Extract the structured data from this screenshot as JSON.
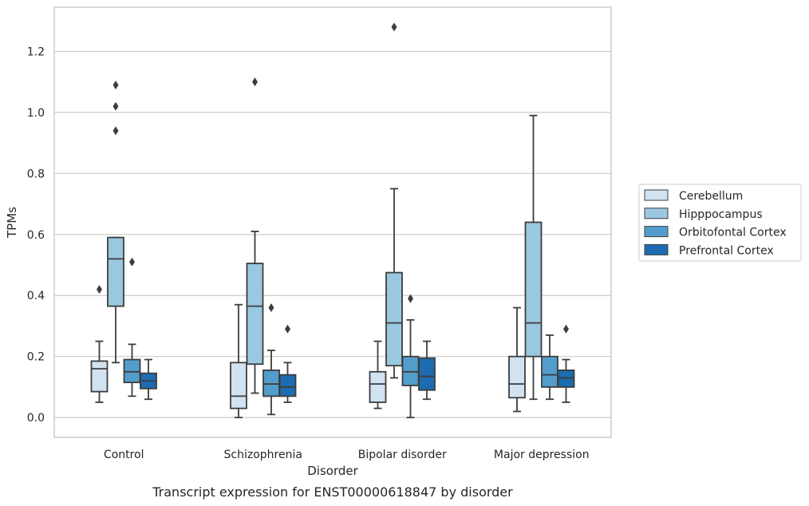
{
  "chart_data": {
    "type": "boxplot",
    "caption": "Transcript expression for ENST00000618847 by disorder",
    "xlabel": "Disorder",
    "ylabel": "TPMs",
    "ylim": [
      -0.065,
      1.345
    ],
    "yticks": [
      0.0,
      0.2,
      0.4,
      0.6,
      0.8,
      1.0,
      1.2
    ],
    "ytick_labels": [
      "0.0",
      "0.2",
      "0.4",
      "0.6",
      "0.8",
      "1.0",
      "1.2"
    ],
    "grid": true,
    "legend_position": "right",
    "categories": [
      "Control",
      "Schizophrenia",
      "Bipolar disorder",
      "Major depression"
    ],
    "series": [
      {
        "name": "Cerebellum",
        "color": "#d1e2f1",
        "boxes": [
          {
            "whislo": 0.05,
            "q1": 0.085,
            "med": 0.16,
            "q3": 0.185,
            "whishi": 0.25,
            "fliers": [
              0.42
            ]
          },
          {
            "whislo": 0.0,
            "q1": 0.03,
            "med": 0.07,
            "q3": 0.18,
            "whishi": 0.37,
            "fliers": []
          },
          {
            "whislo": 0.03,
            "q1": 0.05,
            "med": 0.11,
            "q3": 0.15,
            "whishi": 0.25,
            "fliers": []
          },
          {
            "whislo": 0.02,
            "q1": 0.065,
            "med": 0.11,
            "q3": 0.2,
            "whishi": 0.36,
            "fliers": []
          }
        ]
      },
      {
        "name": "Hipppocampus",
        "color": "#9ac8e0",
        "boxes": [
          {
            "whislo": 0.18,
            "q1": 0.365,
            "med": 0.52,
            "q3": 0.59,
            "whishi": 0.59,
            "fliers": [
              0.94,
              1.02,
              1.09
            ]
          },
          {
            "whislo": 0.08,
            "q1": 0.175,
            "med": 0.365,
            "q3": 0.505,
            "whishi": 0.61,
            "fliers": [
              1.1
            ]
          },
          {
            "whislo": 0.13,
            "q1": 0.17,
            "med": 0.31,
            "q3": 0.475,
            "whishi": 0.75,
            "fliers": [
              1.28
            ]
          },
          {
            "whislo": 0.06,
            "q1": 0.2,
            "med": 0.31,
            "q3": 0.64,
            "whishi": 0.99,
            "fliers": []
          }
        ]
      },
      {
        "name": "Orbitofontal Cortex",
        "color": "#529dcc",
        "boxes": [
          {
            "whislo": 0.07,
            "q1": 0.115,
            "med": 0.15,
            "q3": 0.19,
            "whishi": 0.24,
            "fliers": [
              0.51
            ]
          },
          {
            "whislo": 0.01,
            "q1": 0.07,
            "med": 0.11,
            "q3": 0.155,
            "whishi": 0.22,
            "fliers": [
              0.36
            ]
          },
          {
            "whislo": 0.0,
            "q1": 0.105,
            "med": 0.15,
            "q3": 0.2,
            "whishi": 0.32,
            "fliers": [
              0.39
            ]
          },
          {
            "whislo": 0.06,
            "q1": 0.1,
            "med": 0.14,
            "q3": 0.2,
            "whishi": 0.27,
            "fliers": []
          }
        ]
      },
      {
        "name": "Prefrontal Cortex",
        "color": "#1d6cb1",
        "boxes": [
          {
            "whislo": 0.06,
            "q1": 0.095,
            "med": 0.12,
            "q3": 0.145,
            "whishi": 0.19,
            "fliers": []
          },
          {
            "whislo": 0.05,
            "q1": 0.07,
            "med": 0.1,
            "q3": 0.14,
            "whishi": 0.18,
            "fliers": [
              0.29
            ]
          },
          {
            "whislo": 0.06,
            "q1": 0.09,
            "med": 0.135,
            "q3": 0.195,
            "whishi": 0.25,
            "fliers": []
          },
          {
            "whislo": 0.05,
            "q1": 0.1,
            "med": 0.13,
            "q3": 0.155,
            "whishi": 0.19,
            "fliers": [
              0.29
            ]
          }
        ]
      }
    ]
  }
}
